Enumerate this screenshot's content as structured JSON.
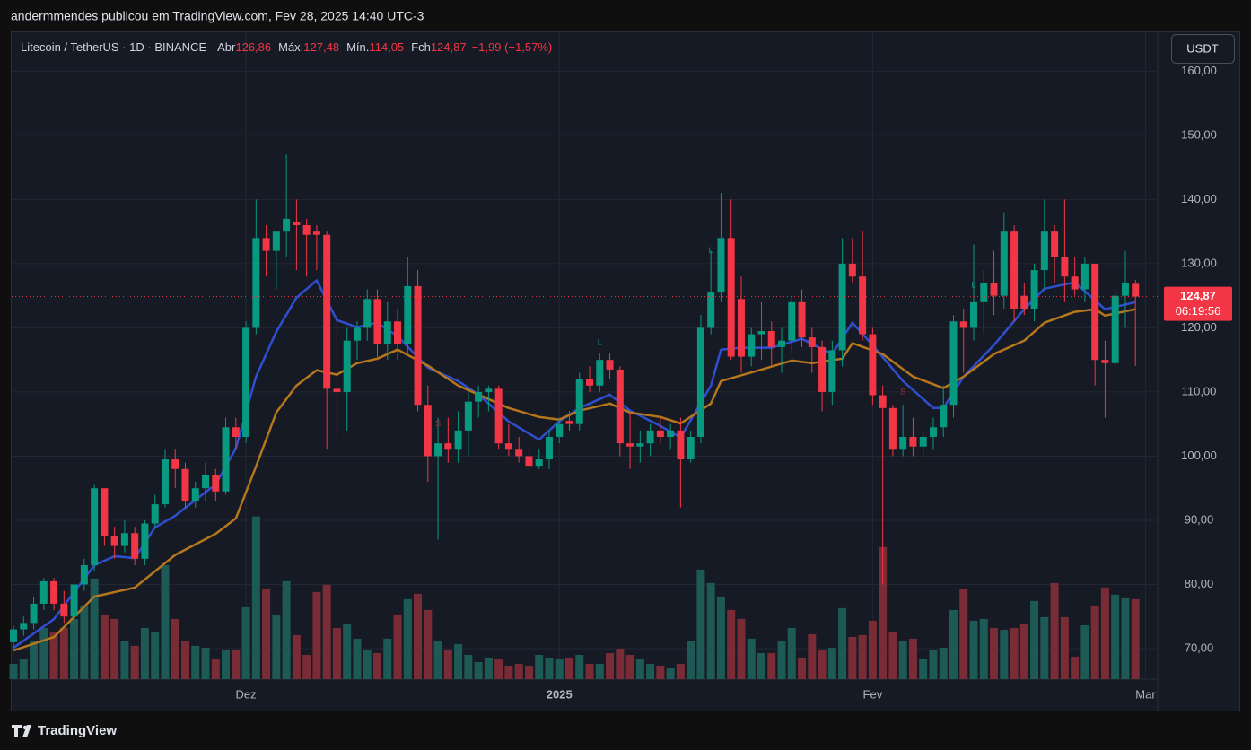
{
  "header": {
    "text": "andermmendes publicou em TradingView.com, Fev 28, 2025 14:40 UTC-3"
  },
  "footer": {
    "brand": "TradingView"
  },
  "chart_data": {
    "type": "candlestick",
    "symbol": "Litecoin / TetherUS · 1D · BINANCE",
    "legend": [
      {
        "name": "Abr",
        "value": 126.86,
        "label": "126,86"
      },
      {
        "name": "Máx.",
        "value": 127.48,
        "label": "127,48"
      },
      {
        "name": "Mín.",
        "value": 114.05,
        "label": "114,05"
      },
      {
        "name": "Fch",
        "value": 124.87,
        "label": "124,87"
      }
    ],
    "change": "−1,99 (−1,57%)",
    "currency_button": "USDT",
    "last_price": {
      "value": 124.87,
      "label": "124,87"
    },
    "countdown": "06:19:56",
    "colors": {
      "up": "#089981",
      "down": "#f23645"
    },
    "open": [
      71,
      73,
      74,
      77,
      80.5,
      77,
      75,
      80,
      83,
      95,
      87.5,
      86,
      88,
      84,
      89.5,
      92.5,
      99.5,
      98,
      93,
      95,
      97,
      94.5,
      104.5,
      103,
      120,
      134,
      132,
      135,
      136.5,
      136,
      135,
      134.5,
      110.5,
      110,
      118,
      120,
      124.5,
      117.5,
      121,
      117.5,
      126.5,
      108,
      100,
      102,
      101,
      104,
      108.5,
      110,
      110.5,
      102,
      101,
      100,
      98.5,
      99.5,
      103,
      105.5,
      105,
      112,
      111,
      115,
      113.5,
      102,
      101.5,
      102,
      104,
      103,
      104,
      99.5,
      103,
      120,
      125.5,
      134,
      124.5,
      115.5,
      119,
      119.5,
      117,
      118,
      124,
      118.5,
      117,
      110,
      116.5,
      130,
      128,
      119,
      109.5,
      107.5,
      101,
      103,
      101.5,
      103,
      104.5,
      108,
      121,
      120,
      124,
      127,
      125,
      135,
      125,
      123,
      129,
      135,
      131,
      128,
      126,
      130,
      115,
      114.5,
      125,
      126.86
    ],
    "high": [
      73.5,
      75,
      78,
      81,
      81,
      79,
      81,
      84,
      95.5,
      95,
      89,
      90,
      89,
      90,
      94,
      101,
      101,
      99,
      96,
      99,
      98,
      106,
      106,
      121,
      140,
      136,
      135,
      147,
      140,
      137,
      136,
      135,
      122,
      120,
      121,
      126,
      126,
      124,
      123,
      131,
      129,
      111,
      106,
      106,
      107,
      110,
      111,
      111,
      111,
      105,
      103,
      101,
      101,
      104,
      106,
      107,
      113,
      114,
      116,
      116,
      114,
      107,
      104,
      105,
      106,
      105,
      106,
      104,
      122,
      132,
      141,
      140,
      128,
      120,
      124,
      121,
      120,
      125,
      126,
      120,
      118,
      118,
      134,
      134,
      135,
      120,
      111,
      108,
      108,
      106,
      104,
      106,
      111,
      122,
      123,
      133,
      129,
      132,
      138,
      136,
      127,
      130,
      140,
      136,
      140,
      131,
      131,
      130,
      118,
      126,
      132,
      127.48
    ],
    "low": [
      70,
      72,
      73,
      76,
      76,
      74,
      74,
      79,
      82,
      86,
      84,
      85,
      83,
      83,
      89,
      92,
      95,
      92,
      92,
      93,
      93,
      94,
      101,
      102,
      119,
      128,
      126,
      131,
      129,
      128,
      129,
      101,
      103,
      104,
      115,
      118,
      115,
      115,
      115,
      116,
      107,
      96,
      87,
      99,
      99,
      100,
      106,
      107,
      101,
      100,
      99,
      97,
      98,
      98,
      102,
      104,
      104,
      110,
      110,
      112,
      100,
      98,
      99,
      100,
      102,
      101,
      92,
      99,
      102,
      119,
      124,
      115,
      113,
      114,
      115,
      114,
      113,
      116,
      117,
      113,
      107,
      108,
      114,
      127,
      118,
      108,
      80,
      100,
      100,
      100,
      100,
      101,
      103,
      106,
      113,
      118,
      119,
      122,
      123,
      121,
      122,
      121,
      126,
      127,
      124,
      125,
      124,
      111,
      106,
      114,
      120,
      114.05
    ],
    "close": [
      73,
      74,
      77,
      80.5,
      77,
      75,
      80,
      83,
      95,
      87.5,
      86,
      88,
      84,
      89.5,
      92.5,
      99.5,
      98,
      93,
      95,
      97,
      94.5,
      104.5,
      103,
      120,
      134,
      132,
      135,
      137,
      136,
      134.5,
      134.5,
      110.5,
      110,
      118,
      120,
      124.5,
      117.5,
      121,
      117.5,
      126.5,
      108,
      100,
      102,
      101,
      104,
      108.5,
      110,
      110.5,
      102,
      101,
      100,
      98.5,
      99.5,
      103,
      105,
      105,
      112,
      111,
      115,
      113.5,
      102,
      101.5,
      102,
      104,
      103,
      104,
      99.5,
      103,
      120,
      125.5,
      134,
      115.5,
      115.5,
      119,
      119.5,
      117,
      118,
      124,
      118.5,
      117,
      110,
      116.5,
      130,
      128,
      119,
      109.5,
      107.5,
      101,
      103,
      101.5,
      103,
      104.5,
      108,
      121,
      120,
      124,
      127,
      125,
      135,
      123,
      123,
      129,
      135,
      131,
      128,
      126,
      130,
      115,
      114.5,
      125,
      127,
      124.87
    ],
    "volume": {
      "ylim": [
        0,
        720
      ],
      "colors": {
        "up": "#1d5a55",
        "down": "#7a2c36"
      },
      "values": [
        17,
        22,
        42,
        57,
        52,
        57,
        67,
        82,
        112,
        72,
        67,
        42,
        37,
        57,
        52,
        127,
        67,
        42,
        37,
        35,
        22,
        32,
        32,
        80,
        181,
        100,
        72,
        109,
        49,
        27,
        97,
        105,
        57,
        62,
        45,
        32,
        29,
        45,
        72,
        89,
        95,
        77,
        42,
        32,
        39,
        27,
        19,
        24,
        22,
        15,
        17,
        15,
        27,
        24,
        22,
        24,
        27,
        17,
        17,
        29,
        34,
        27,
        22,
        17,
        15,
        12,
        17,
        42,
        122,
        107,
        92,
        77,
        67,
        45,
        29,
        29,
        42,
        57,
        24,
        50,
        32,
        35,
        79,
        47,
        49,
        65,
        147,
        52,
        42,
        45,
        22,
        32,
        35,
        77,
        100,
        65,
        67,
        57,
        55,
        57,
        62,
        87,
        69,
        107,
        69,
        25,
        60,
        82,
        102,
        94,
        90,
        89
      ]
    },
    "moving_averages": [
      {
        "color": "#2f4fd0",
        "x": [
          0,
          4,
          8,
          10,
          12,
          14,
          16,
          20,
          22,
          24,
          26,
          28,
          30,
          32,
          34,
          36,
          38,
          41,
          44,
          46,
          49,
          52,
          54,
          56,
          59,
          61,
          64,
          66,
          69,
          70,
          72,
          75,
          78,
          81,
          83,
          85,
          88,
          91,
          92,
          94,
          97,
          100,
          102,
          105,
          107,
          108,
          111
        ],
        "values": [
          70.1,
          74.6,
          83,
          84.4,
          84.1,
          88.9,
          90.7,
          95.6,
          101.2,
          112.4,
          119.4,
          124.7,
          127.4,
          121.2,
          120.1,
          120.8,
          118.7,
          113.8,
          111.7,
          109.6,
          105.4,
          102.6,
          105.4,
          107.5,
          109.6,
          107.1,
          104.7,
          102.9,
          111,
          116.6,
          116.9,
          116.9,
          118.3,
          115.9,
          120.8,
          117.3,
          111.7,
          107.5,
          107.5,
          112.4,
          117.3,
          122.9,
          126.1,
          127.1,
          124.3,
          122.9,
          124
        ]
      },
      {
        "color": "#b5761c",
        "x": [
          0,
          4,
          8,
          12,
          16,
          20,
          22,
          24,
          26,
          28,
          30,
          32,
          34,
          36,
          38,
          41,
          44,
          46,
          49,
          52,
          54,
          56,
          59,
          61,
          64,
          66,
          69,
          70,
          74,
          77,
          79,
          82,
          83,
          86,
          89,
          92,
          94,
          97,
          100,
          102,
          105,
          107,
          108,
          111
        ],
        "values": [
          69.7,
          71.8,
          78.1,
          79.5,
          84.6,
          87.9,
          90.3,
          98.4,
          106.8,
          111,
          113.4,
          112.7,
          114.5,
          115.2,
          116.6,
          114.1,
          111,
          109.6,
          107.5,
          106.1,
          105.7,
          107.1,
          108.2,
          106.8,
          106.1,
          105.1,
          108.2,
          111.7,
          113.5,
          114.9,
          114.5,
          115.2,
          117.6,
          115.9,
          112.4,
          110.6,
          112.4,
          115.9,
          118,
          120.8,
          122.5,
          122.9,
          121.9,
          122.9
        ]
      }
    ],
    "signals": [
      {
        "label": "S",
        "x": 42,
        "y": 105,
        "color": "#b22833"
      },
      {
        "label": "L",
        "x": 58,
        "y": 117.7,
        "color": "#089981"
      },
      {
        "label": "L",
        "x": 69,
        "y": 132,
        "color": "#089981"
      },
      {
        "label": "S",
        "x": 88,
        "y": 110,
        "color": "#b22833"
      },
      {
        "label": "L",
        "x": 95,
        "y": 126.6,
        "color": "#089981"
      }
    ],
    "xlim": [
      -0.18,
      113.2
    ],
    "xticks": [
      {
        "value": 23,
        "label": "Dez"
      },
      {
        "value": 54,
        "label": "2025"
      },
      {
        "value": 85,
        "label": "Fev"
      },
      {
        "value": 112,
        "label": "Mar"
      }
    ],
    "ylim": [
      65.24,
      166.07
    ],
    "yticks": [
      {
        "value": 70,
        "label": "70,00"
      },
      {
        "value": 80,
        "label": "80,00"
      },
      {
        "value": 90,
        "label": "90,00"
      },
      {
        "value": 100,
        "label": "100,00"
      },
      {
        "value": 110,
        "label": "110,00"
      },
      {
        "value": 120,
        "label": "120,00"
      },
      {
        "value": 130,
        "label": "130,00"
      },
      {
        "value": 140,
        "label": "140,00"
      },
      {
        "value": 150,
        "label": "150,00"
      },
      {
        "value": 160,
        "label": "160,00"
      }
    ],
    "grid": true
  }
}
